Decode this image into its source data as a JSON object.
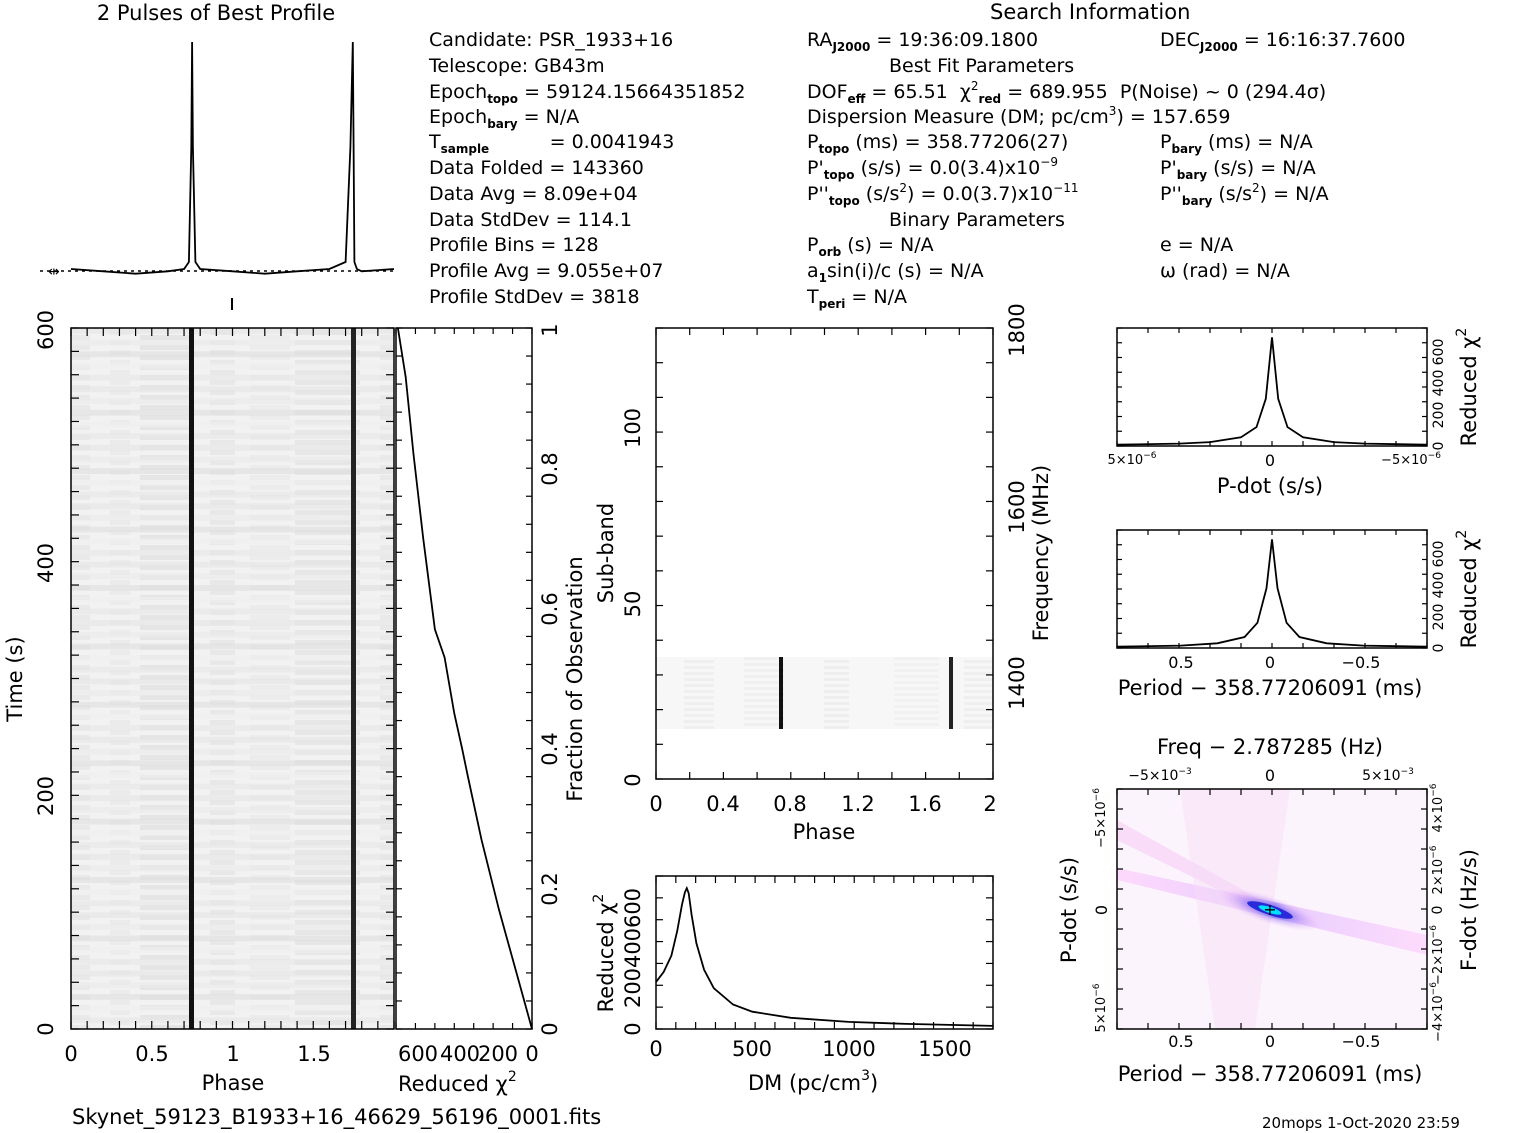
{
  "colors": {
    "ink": "#000000",
    "pulse_cmap": [
      "#ffffff",
      "#000000"
    ],
    "ppdot_cmap": [
      "#ffffff",
      "#ff80ff",
      "#3030e0",
      "#00ffff"
    ]
  },
  "header": {
    "profile_title": "2 Pulses of Best Profile",
    "search_title": "Search Information",
    "best_fit_title": "Best Fit Parameters",
    "binary_title": "Binary Parameters"
  },
  "search_info": {
    "candidate": "Candidate:  PSR_1933+16",
    "telescope": "Telescope:  GB43m",
    "epoch_topo_value": "= 59124.15664351852",
    "epoch_bary_value": "= N/A",
    "t_sample_value": "=   0.0041943",
    "data_folded": "Data Folded    =   143360",
    "data_avg": "Data Avg        =   8.09e+04",
    "data_stddev": "Data StdDev     =   114.1",
    "profile_bins": "Profile Bins     =   128",
    "profile_avg": "Profile Avg      =   9.055e+07",
    "profile_stddev": "Profile StdDev  =   3818",
    "ra_value": "= 19:36:09.1800",
    "dec_value": "= 16:16:37.7600",
    "dof_value": "= 65.51",
    "chi2_value": "= 689.955",
    "pnoise": "P(Noise) ~ 0    (294.4σ)",
    "dm_line": "Dispersion Measure (DM; pc/cm",
    "dm_value": ") = 157.659",
    "p_topo_value": "(ms) =  358.77206(27)",
    "p_bary_value": "(ms) = N/A",
    "pd_topo_value": "(s/s) = 0.0(3.4)x10",
    "pd_topo_exp": "−9",
    "pd_bary_value": "(s/s) = N/A",
    "pdd_topo_value": "(s/s",
    "pdd_topo_tail": ") = 0.0(3.7)x10",
    "pdd_topo_exp": "−11",
    "pdd_bary_value": "(s/s",
    "pdd_bary_tail": ") = N/A",
    "p_orb": "(s) = N/A",
    "a1sini": "sin(i)/c (s) = N/A",
    "t_peri": "= N/A",
    "ecc": "e = N/A",
    "omega": "ω (rad) = N/A"
  },
  "footer": {
    "filename": "Skynet_59123_B1933+16_46629_56196_0001.fits",
    "stamp": "20mops   1-Oct-2020 23:59"
  },
  "chart_data": [
    {
      "id": "profile",
      "type": "line",
      "title": "2 Pulses of Best Profile",
      "x": [
        0,
        0.2,
        0.4,
        0.6,
        0.7,
        0.73,
        0.745,
        0.75,
        0.755,
        0.77,
        0.8,
        1.0,
        1.2,
        1.4,
        1.6,
        1.7,
        1.73,
        1.745,
        1.75,
        1.755,
        1.77,
        1.8,
        2.0
      ],
      "y": [
        0.03,
        0.02,
        0.01,
        0.02,
        0.03,
        0.06,
        0.55,
        1.0,
        0.55,
        0.06,
        0.03,
        0.02,
        0.01,
        0.02,
        0.03,
        0.06,
        0.55,
        1.0,
        0.55,
        0.06,
        0.03,
        0.02,
        0.03
      ],
      "xlim": [
        0,
        2
      ]
    },
    {
      "id": "time_phase",
      "type": "heatmap",
      "xlabel": "Phase",
      "ylabel": "Time (s)",
      "xlim": [
        0,
        2
      ],
      "ylim": [
        0,
        600
      ],
      "x_ticks": [
        "0",
        "0.5",
        "1",
        "1.5"
      ],
      "y_ticks": [
        "0",
        "200",
        "400",
        "600"
      ],
      "pulse_phases": [
        0.75,
        1.75
      ]
    },
    {
      "id": "chi2_vs_time",
      "type": "line",
      "xlabel": "Reduced χ",
      "ylabel": "Fraction of Observation",
      "x_ticks": [
        "600",
        "400",
        "200",
        "0"
      ],
      "y_ticks": [
        "0",
        "0.2",
        "0.4",
        "0.6",
        "0.8",
        "1"
      ],
      "xlim": [
        700,
        0
      ],
      "ylim": [
        0,
        1
      ],
      "x": [
        0,
        80,
        170,
        260,
        330,
        360,
        400,
        450,
        500,
        560,
        610,
        650,
        690
      ],
      "y": [
        0,
        0.08,
        0.17,
        0.27,
        0.36,
        0.4,
        0.45,
        0.53,
        0.57,
        0.7,
        0.82,
        0.93,
        1.0
      ]
    },
    {
      "id": "subband_phase",
      "type": "heatmap",
      "xlabel": "Phase",
      "ylabel": "Sub-band",
      "y2label": "Frequency (MHz)",
      "xlim": [
        0,
        2
      ],
      "ylim": [
        0,
        128
      ],
      "x_ticks": [
        "0",
        "0.4",
        "0.8",
        "1.2",
        "1.6",
        "2"
      ],
      "y_ticks": [
        "0",
        "50",
        "100"
      ],
      "y2_ticks": [
        "1400",
        "1600",
        "1800"
      ],
      "active_subbands": [
        15,
        35
      ],
      "pulse_phases": [
        0.75,
        1.75
      ]
    },
    {
      "id": "dm_curve",
      "type": "line",
      "xlabel": "DM (pc/cm",
      "ylabel": "Reduced χ",
      "xlim": [
        0,
        1750
      ],
      "ylim": [
        0,
        750
      ],
      "x_ticks": [
        "0",
        "500",
        "1000",
        "1500"
      ],
      "y_ticks": [
        "0",
        "200",
        "400",
        "600"
      ],
      "x": [
        0,
        40,
        80,
        110,
        135,
        150,
        160,
        170,
        185,
        210,
        250,
        300,
        400,
        500,
        700,
        1000,
        1300,
        1750
      ],
      "y": [
        230,
        280,
        360,
        480,
        610,
        670,
        690,
        665,
        560,
        420,
        290,
        200,
        120,
        85,
        55,
        35,
        25,
        15
      ]
    },
    {
      "id": "pdot_curve",
      "type": "line",
      "xlabel": "P-dot (s/s)",
      "ylabel": "Reduced χ",
      "x_tick_labels": [
        "5×10",
        "0",
        "−5×10"
      ],
      "x_tick_exp": "−6",
      "y_ticks": [
        "0",
        "200",
        "400",
        "600"
      ],
      "xlim": [
        5e-06,
        -5e-06
      ],
      "ylim": [
        0,
        750
      ],
      "x": [
        5e-06,
        3e-06,
        2e-06,
        1e-06,
        5e-07,
        2e-07,
        0,
        -2e-07,
        -5e-07,
        -1e-06,
        -2e-06,
        -3e-06,
        -5e-06
      ],
      "y": [
        8,
        15,
        25,
        55,
        120,
        300,
        690,
        300,
        120,
        55,
        25,
        15,
        8
      ]
    },
    {
      "id": "period_curve",
      "type": "line",
      "xlabel": "Period − 358.77206091 (ms)",
      "ylabel": "Reduced χ",
      "x_ticks": [
        "0.5",
        "0",
        "−0.5"
      ],
      "y_ticks": [
        "0",
        "200",
        "400",
        "600"
      ],
      "xlim": [
        0.85,
        -0.85
      ],
      "ylim": [
        0,
        750
      ],
      "x": [
        0.85,
        0.5,
        0.3,
        0.15,
        0.08,
        0.03,
        0,
        -0.03,
        -0.08,
        -0.15,
        -0.3,
        -0.5,
        -0.85
      ],
      "y": [
        8,
        15,
        30,
        70,
        160,
        380,
        690,
        380,
        160,
        70,
        30,
        15,
        8
      ]
    },
    {
      "id": "p_pdot_plane",
      "type": "heatmap",
      "title": "Freq − 2.787285 (Hz)",
      "xlabel": "Period − 358.77206091 (ms)",
      "ylabel": "P-dot (s/s)",
      "y2label": "F-dot (Hz/s)",
      "x_ticks": [
        "0.5",
        "0",
        "−0.5"
      ],
      "top_ticks": [
        "−5×10",
        "0",
        "5×10"
      ],
      "top_tick_exp": "−3",
      "y_ticks": [
        "−5×10",
        "0",
        "5×10"
      ],
      "y_tick_exp": "−6",
      "y2_ticks": [
        "4×10",
        "2×10",
        "0",
        "−2×10",
        "−4×10"
      ],
      "y2_tick_exp": "−6",
      "xlim": [
        0.85,
        -0.85
      ],
      "ylim": [
        6e-06,
        -6e-06
      ],
      "best": [
        0,
        0
      ]
    }
  ]
}
